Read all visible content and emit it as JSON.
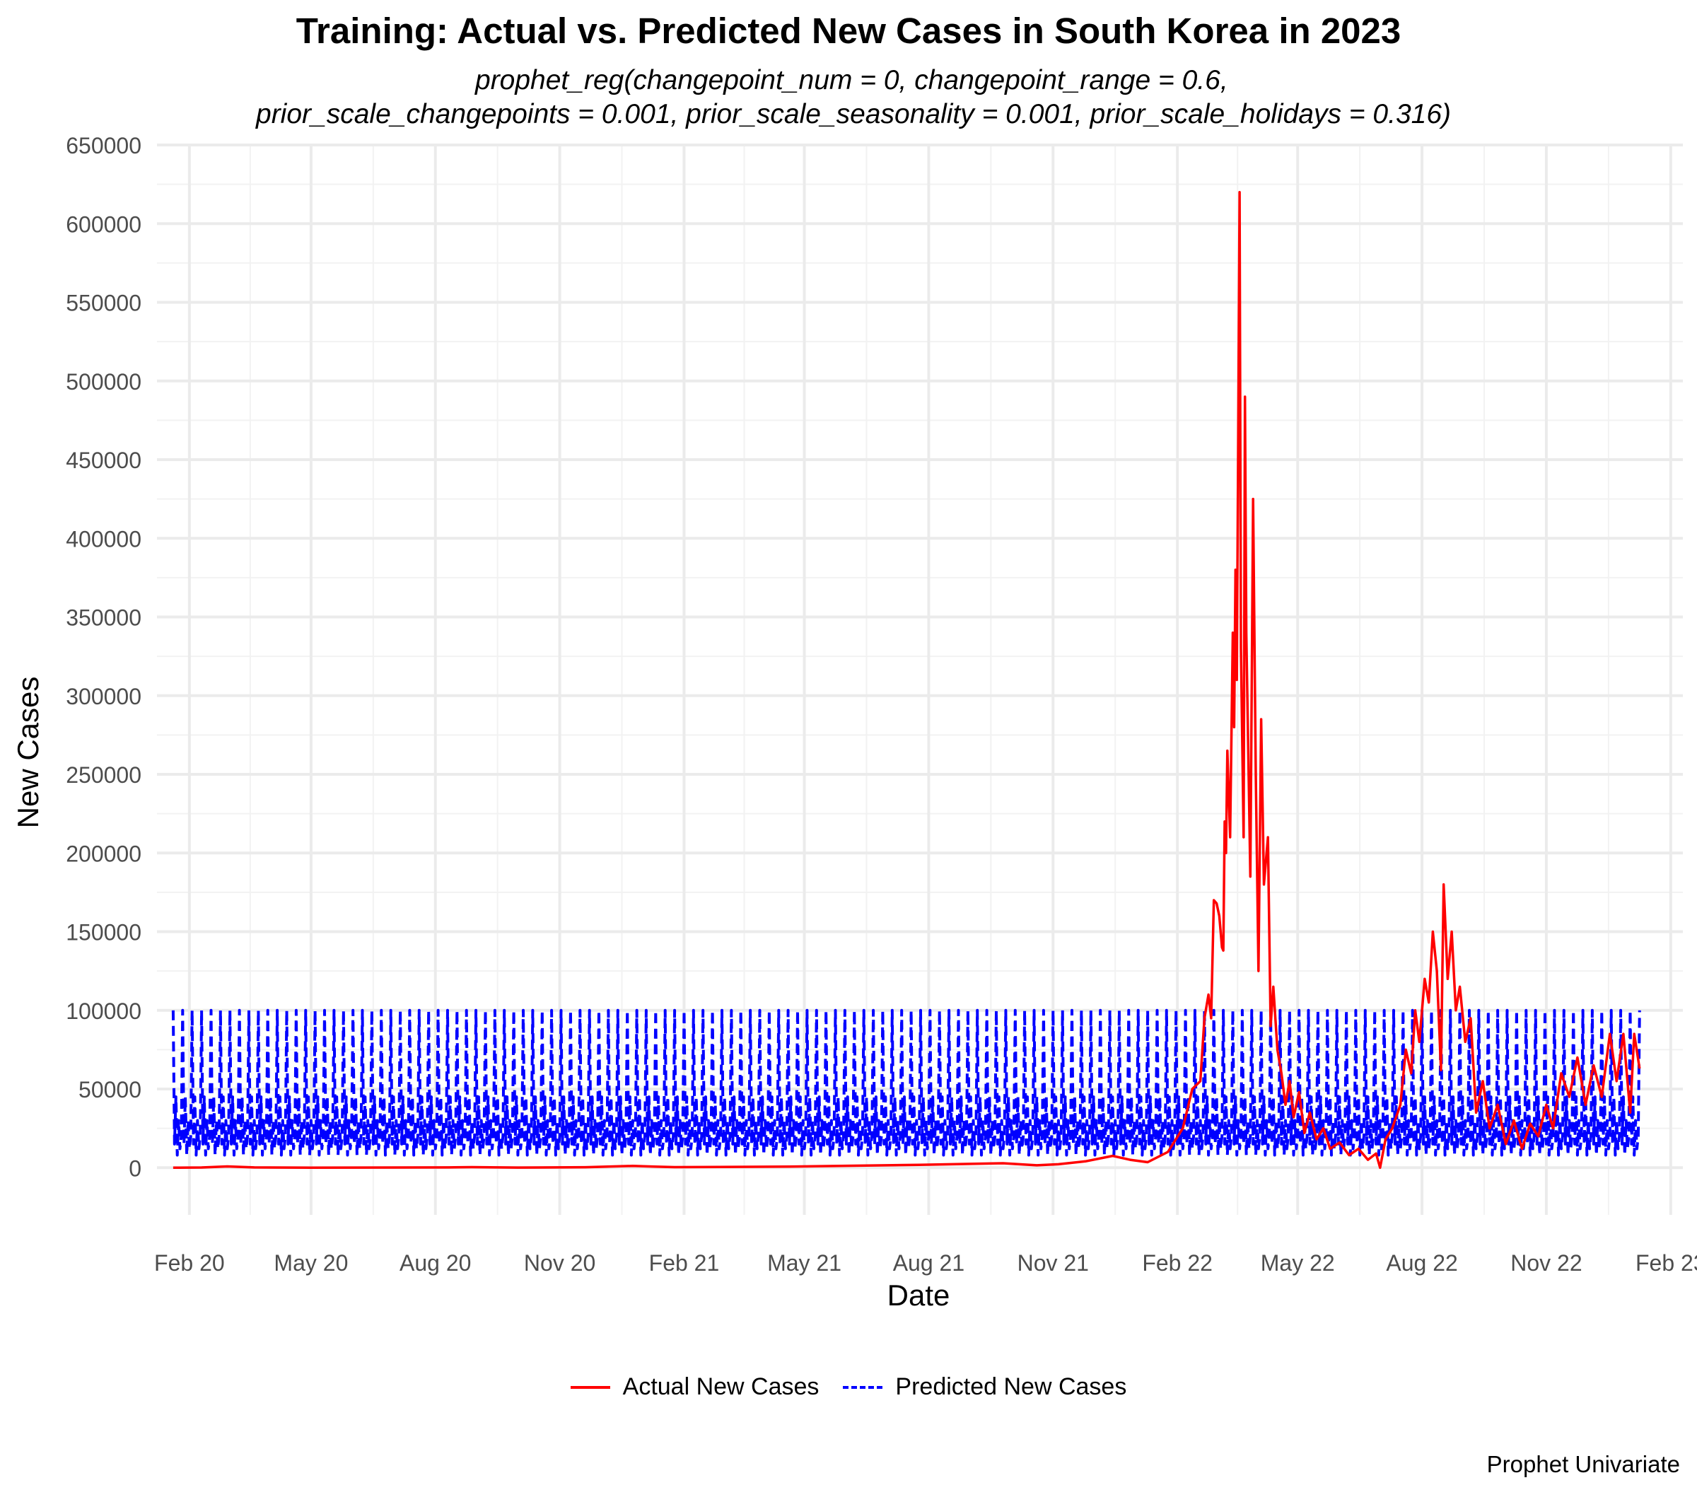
{
  "chart_data": {
    "type": "line",
    "title": "Training: Actual vs. Predicted New Cases in South Korea in 2023",
    "subtitle_lines": [
      "prophet_reg(changepoint_num = 0, changepoint_range = 0.6,",
      "prior_scale_changepoints = 0.001, prior_scale_seasonality = 0.001, prior_scale_holidays = 0.316)"
    ],
    "xlabel": "Date",
    "ylabel": "New Cases",
    "caption": "Prophet Univariate",
    "x_ticks": [
      "2020-02-01",
      "2020-05-01",
      "2020-08-01",
      "2020-11-01",
      "2021-02-01",
      "2021-05-01",
      "2021-08-01",
      "2021-11-01",
      "2022-02-01",
      "2022-05-01",
      "2022-08-01",
      "2022-11-01",
      "2023-02-01"
    ],
    "x_tick_labels": [
      "Feb 20",
      "May 20",
      "Aug 20",
      "Nov 20",
      "Feb 21",
      "May 21",
      "Aug 21",
      "Nov 21",
      "Feb 22",
      "May 22",
      "Aug 22",
      "Nov 22",
      "Feb 23"
    ],
    "xlim": [
      "2020-01-08",
      "2023-02-10"
    ],
    "ylim": [
      -30000,
      650000
    ],
    "y_ticks": [
      0,
      50000,
      100000,
      150000,
      200000,
      250000,
      300000,
      350000,
      400000,
      450000,
      500000,
      550000,
      600000,
      650000
    ],
    "grid": true,
    "legend_position": "bottom",
    "series": [
      {
        "name": "Actual New Cases",
        "color": "#ff0000",
        "dash": "solid",
        "points": [
          [
            "2020-01-20",
            0
          ],
          [
            "2020-02-10",
            100
          ],
          [
            "2020-02-29",
            800
          ],
          [
            "2020-03-20",
            150
          ],
          [
            "2020-05-01",
            20
          ],
          [
            "2020-08-15",
            200
          ],
          [
            "2020-08-28",
            350
          ],
          [
            "2020-10-01",
            80
          ],
          [
            "2020-11-20",
            300
          ],
          [
            "2020-12-25",
            1100
          ],
          [
            "2021-01-10",
            700
          ],
          [
            "2021-01-25",
            350
          ],
          [
            "2021-04-20",
            700
          ],
          [
            "2021-07-25",
            1800
          ],
          [
            "2021-09-25",
            2800
          ],
          [
            "2021-10-20",
            1500
          ],
          [
            "2021-11-05",
            2200
          ],
          [
            "2021-11-25",
            4000
          ],
          [
            "2021-12-15",
            7500
          ],
          [
            "2021-12-28",
            5000
          ],
          [
            "2022-01-10",
            3500
          ],
          [
            "2022-01-25",
            10000
          ],
          [
            "2022-02-05",
            25000
          ],
          [
            "2022-02-12",
            50000
          ],
          [
            "2022-02-18",
            55000
          ],
          [
            "2022-02-21",
            95000
          ],
          [
            "2022-02-24",
            110000
          ],
          [
            "2022-02-26",
            95000
          ],
          [
            "2022-02-28",
            170000
          ],
          [
            "2022-03-02",
            168000
          ],
          [
            "2022-03-04",
            160000
          ],
          [
            "2022-03-06",
            140000
          ],
          [
            "2022-03-07",
            138000
          ],
          [
            "2022-03-08",
            220000
          ],
          [
            "2022-03-09",
            200000
          ],
          [
            "2022-03-10",
            265000
          ],
          [
            "2022-03-12",
            210000
          ],
          [
            "2022-03-14",
            340000
          ],
          [
            "2022-03-15",
            280000
          ],
          [
            "2022-03-16",
            380000
          ],
          [
            "2022-03-17",
            310000
          ],
          [
            "2022-03-19",
            620000
          ],
          [
            "2022-03-20",
            330000
          ],
          [
            "2022-03-22",
            210000
          ],
          [
            "2022-03-23",
            490000
          ],
          [
            "2022-03-24",
            340000
          ],
          [
            "2022-03-27",
            185000
          ],
          [
            "2022-03-29",
            425000
          ],
          [
            "2022-03-31",
            250000
          ],
          [
            "2022-04-02",
            125000
          ],
          [
            "2022-04-04",
            285000
          ],
          [
            "2022-04-06",
            180000
          ],
          [
            "2022-04-09",
            210000
          ],
          [
            "2022-04-11",
            90000
          ],
          [
            "2022-04-13",
            115000
          ],
          [
            "2022-04-16",
            75000
          ],
          [
            "2022-04-19",
            60000
          ],
          [
            "2022-04-22",
            40000
          ],
          [
            "2022-04-25",
            55000
          ],
          [
            "2022-04-28",
            32000
          ],
          [
            "2022-05-02",
            48000
          ],
          [
            "2022-05-06",
            22000
          ],
          [
            "2022-05-10",
            35000
          ],
          [
            "2022-05-15",
            18000
          ],
          [
            "2022-05-20",
            25000
          ],
          [
            "2022-05-25",
            12000
          ],
          [
            "2022-06-01",
            16000
          ],
          [
            "2022-06-08",
            8000
          ],
          [
            "2022-06-15",
            12000
          ],
          [
            "2022-06-22",
            5000
          ],
          [
            "2022-06-28",
            9000
          ],
          [
            "2022-07-01",
            0
          ],
          [
            "2022-07-05",
            18000
          ],
          [
            "2022-07-10",
            25000
          ],
          [
            "2022-07-16",
            40000
          ],
          [
            "2022-07-20",
            75000
          ],
          [
            "2022-07-24",
            60000
          ],
          [
            "2022-07-27",
            100000
          ],
          [
            "2022-07-30",
            80000
          ],
          [
            "2022-08-03",
            120000
          ],
          [
            "2022-08-06",
            105000
          ],
          [
            "2022-08-09",
            150000
          ],
          [
            "2022-08-12",
            125000
          ],
          [
            "2022-08-15",
            62000
          ],
          [
            "2022-08-17",
            180000
          ],
          [
            "2022-08-20",
            120000
          ],
          [
            "2022-08-23",
            150000
          ],
          [
            "2022-08-26",
            100000
          ],
          [
            "2022-08-29",
            115000
          ],
          [
            "2022-09-02",
            80000
          ],
          [
            "2022-09-06",
            95000
          ],
          [
            "2022-09-10",
            35000
          ],
          [
            "2022-09-15",
            55000
          ],
          [
            "2022-09-20",
            25000
          ],
          [
            "2022-09-26",
            40000
          ],
          [
            "2022-10-02",
            15000
          ],
          [
            "2022-10-08",
            30000
          ],
          [
            "2022-10-14",
            12000
          ],
          [
            "2022-10-20",
            28000
          ],
          [
            "2022-10-26",
            20000
          ],
          [
            "2022-11-01",
            40000
          ],
          [
            "2022-11-06",
            25000
          ],
          [
            "2022-11-12",
            60000
          ],
          [
            "2022-11-18",
            45000
          ],
          [
            "2022-11-24",
            70000
          ],
          [
            "2022-11-30",
            40000
          ],
          [
            "2022-12-06",
            65000
          ],
          [
            "2022-12-12",
            45000
          ],
          [
            "2022-12-18",
            85000
          ],
          [
            "2022-12-23",
            55000
          ],
          [
            "2022-12-28",
            85000
          ],
          [
            "2023-01-02",
            35000
          ],
          [
            "2023-01-05",
            85000
          ],
          [
            "2023-01-09",
            63000
          ]
        ]
      },
      {
        "name": "Predicted New Cases",
        "color": "#0000ff",
        "dash": "dashed",
        "weekly_pattern": [
          100000,
          15000,
          45000,
          8000,
          30000,
          12000,
          20000
        ],
        "points": [
          [
            "2020-01-20",
            15000
          ],
          [
            "2020-01-21",
            30000
          ],
          [
            "2020-01-22",
            18000
          ],
          [
            "2020-01-23",
            97000
          ],
          [
            "2023-01-08",
            25000
          ],
          [
            "2023-01-09",
            18000
          ]
        ]
      }
    ]
  }
}
